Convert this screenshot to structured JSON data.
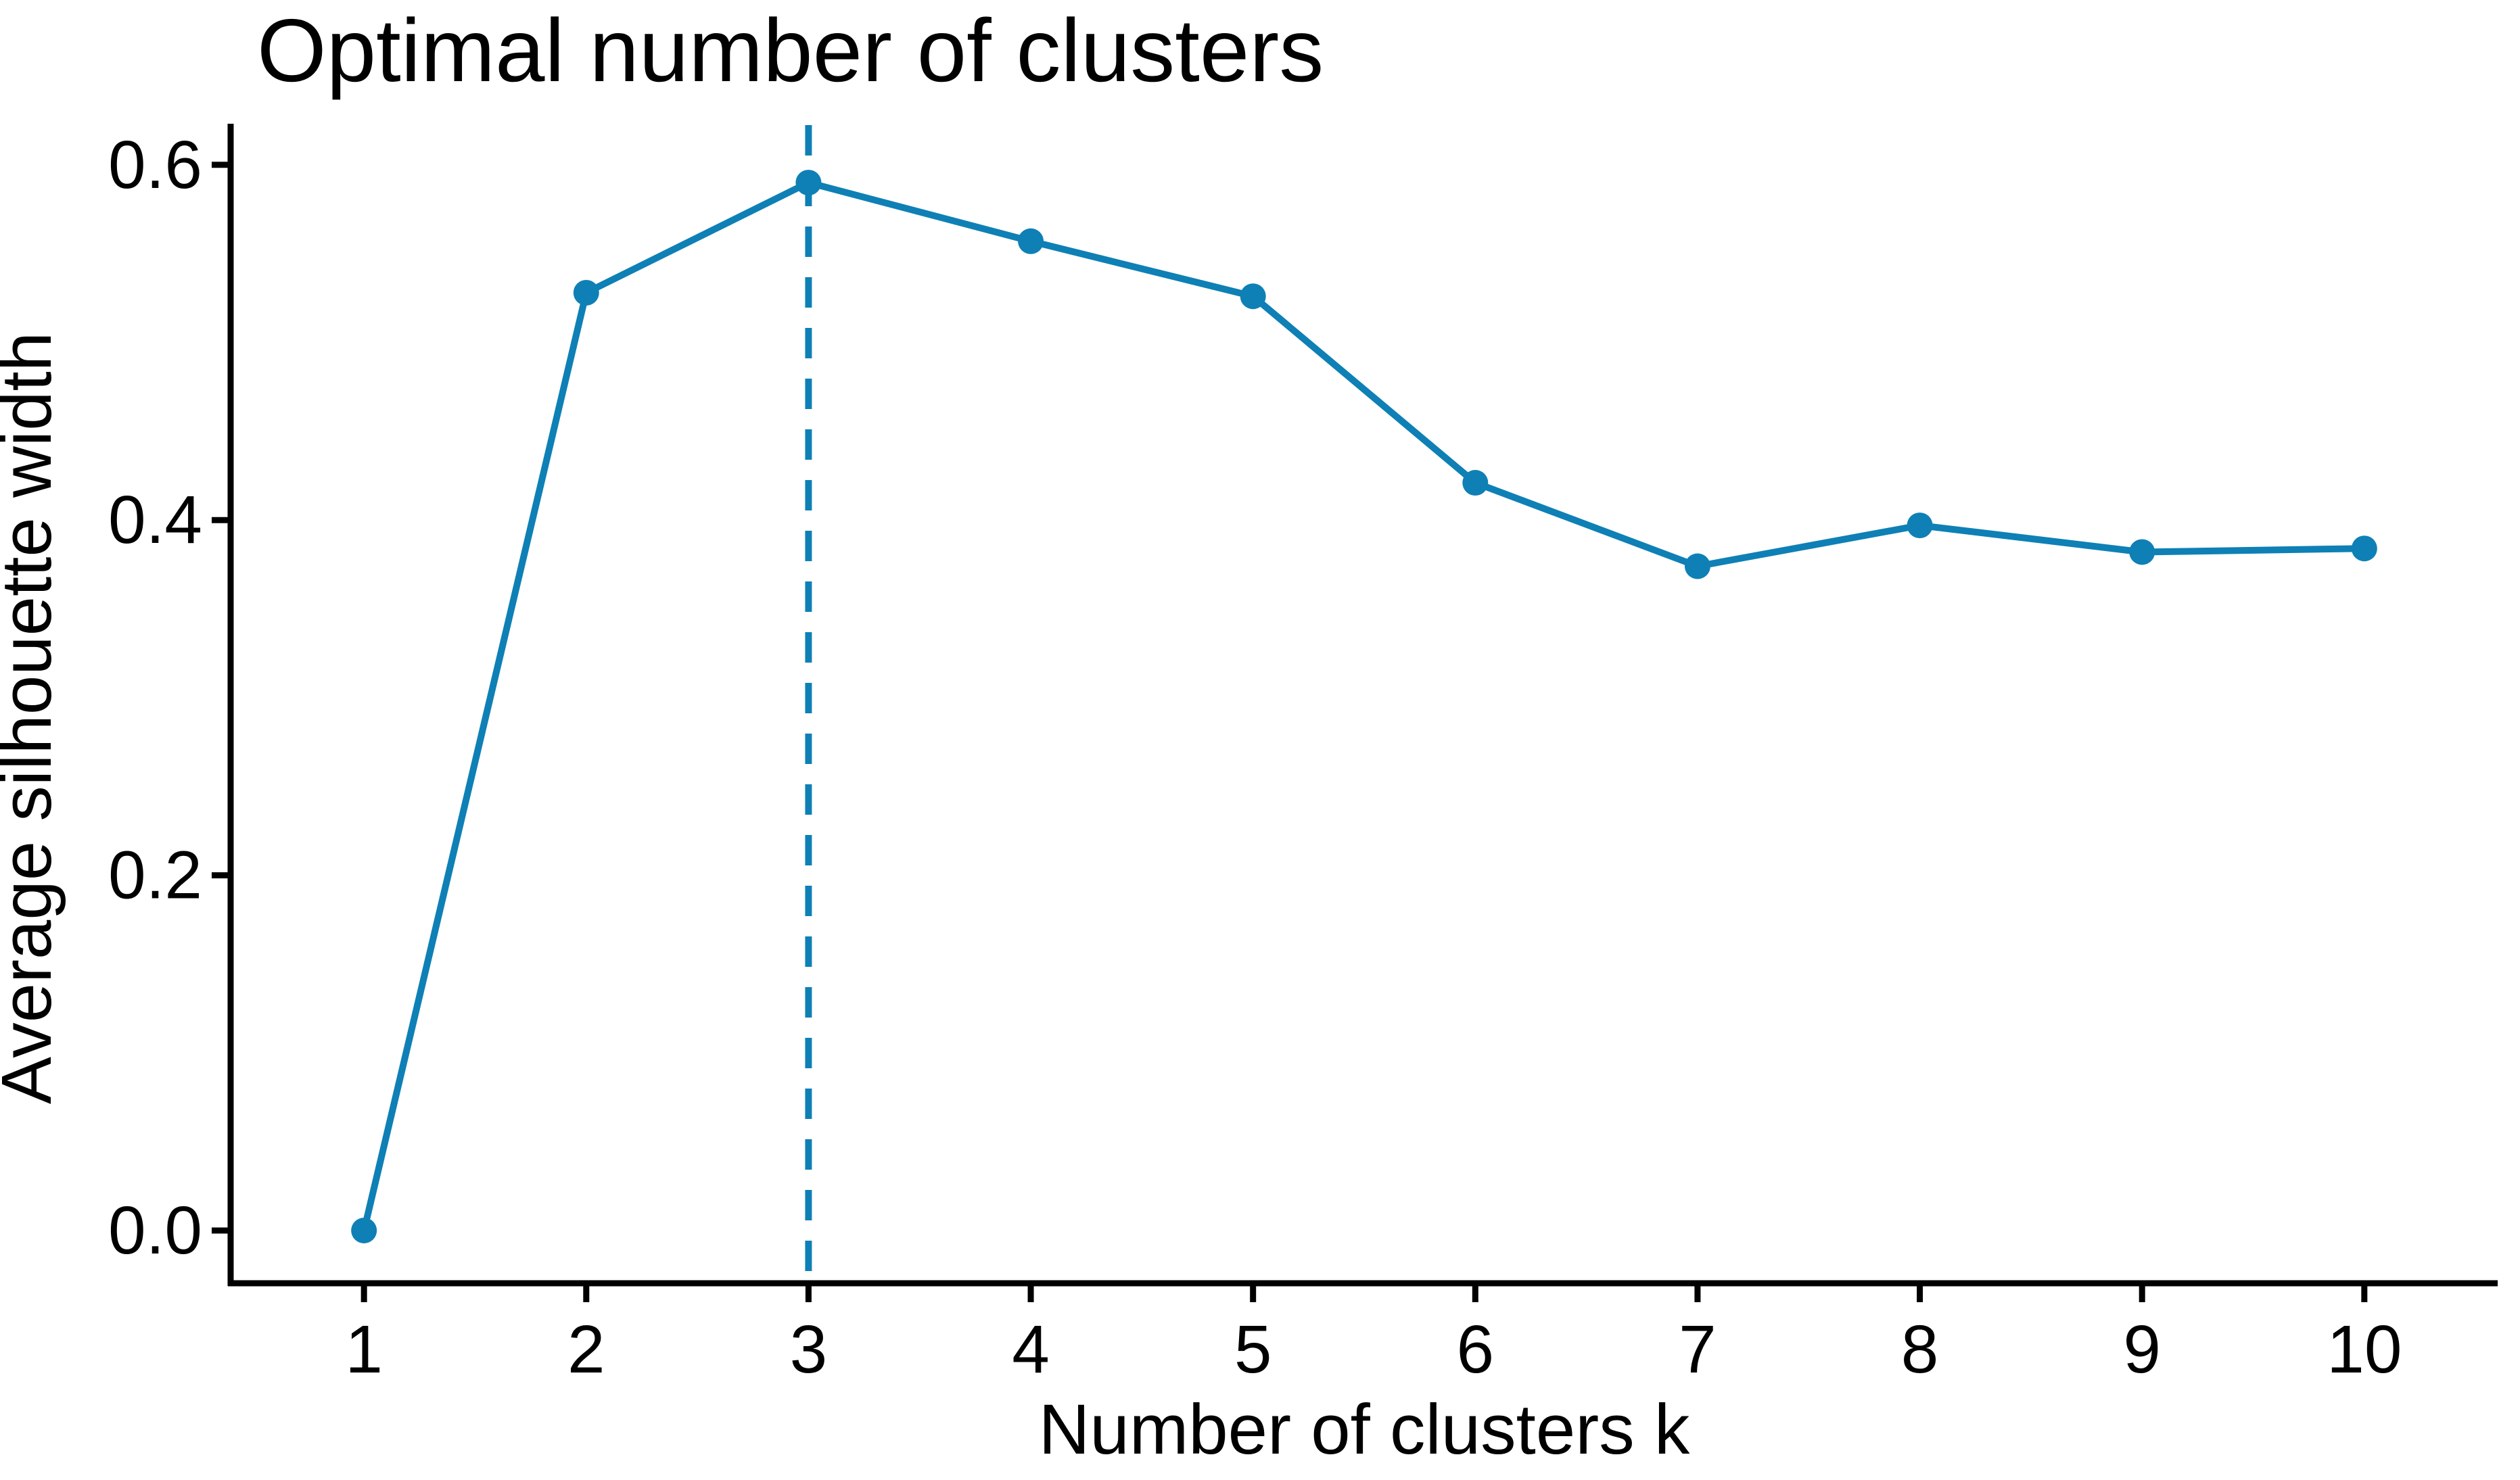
{
  "chart_data": {
    "type": "line",
    "title": "Optimal number of clusters",
    "xlabel": "Number of clusters k",
    "ylabel": "Average silhouette width",
    "x": [
      1,
      2,
      3,
      4,
      5,
      6,
      7,
      8,
      9,
      10
    ],
    "values": [
      0.0,
      0.528,
      0.59,
      0.557,
      0.526,
      0.421,
      0.374,
      0.397,
      0.382,
      0.384
    ],
    "x_tick_labels": [
      "1",
      "2",
      "3",
      "4",
      "5",
      "6",
      "7",
      "8",
      "9",
      "10"
    ],
    "y_tick_labels": [
      "0.0",
      "0.2",
      "0.4",
      "0.6"
    ],
    "y_tick_values": [
      0.0,
      0.2,
      0.4,
      0.6
    ],
    "ylim": [
      -0.03,
      0.62
    ],
    "optimal_k": 3,
    "vline": {
      "x": 3,
      "style": "dashed"
    },
    "grid": false,
    "legend_position": "none",
    "colors": {
      "line": "#0e80b5",
      "point": "#0e80b5",
      "vline": "#0e80b5",
      "axis": "#000000",
      "text": "#000000"
    }
  }
}
